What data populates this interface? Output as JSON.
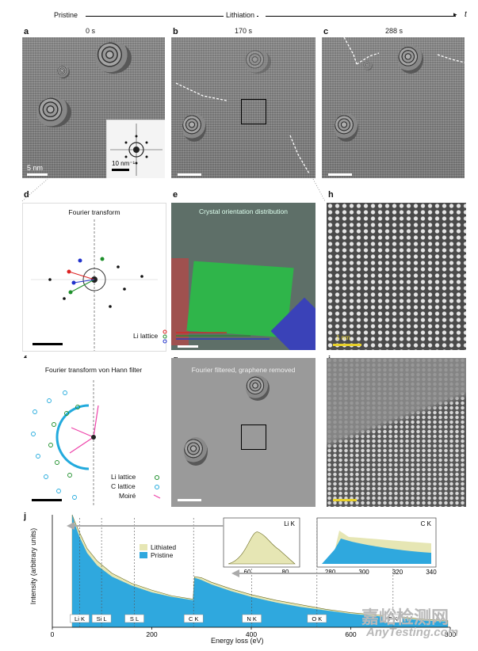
{
  "timeline": {
    "start": "Pristine",
    "mid": "Lithiation",
    "end": "t"
  },
  "panels": {
    "a": {
      "label": "a",
      "time": "0 s",
      "scale": "5 nm",
      "fft_scale": "10 nm⁻¹"
    },
    "b": {
      "label": "b",
      "time": "170 s"
    },
    "c": {
      "label": "c",
      "time": "288 s"
    },
    "d": {
      "label": "d",
      "title": "Fourier transform"
    },
    "e": {
      "label": "e",
      "title": "Crystal orientation distribution",
      "legend": "Li lattice"
    },
    "f": {
      "label": "f",
      "title": "Fourier transform von Hann filter",
      "legend": [
        "Li lattice",
        "C lattice",
        "Moiré"
      ]
    },
    "g": {
      "label": "g",
      "title": "Fourier filtered, graphene removed"
    },
    "h": {
      "label": "h",
      "scale": "1 nm"
    },
    "i": {
      "label": "i"
    },
    "j": {
      "label": "j"
    }
  },
  "colors": {
    "pristine": "#2fa8de",
    "lithiated": "#e6e6b4",
    "li_green": "#1d8f2a",
    "li_red": "#d22",
    "li_blue": "#2233cc",
    "c_lattice": "#22aadd",
    "moire": "#ee44aa",
    "scale_yellow": "#e8d02a"
  },
  "chart_data": {
    "type": "area",
    "xlabel": "Energy loss (eV)",
    "ylabel": "Intensity (arbitrary units)",
    "xlim": [
      0,
      800
    ],
    "xticks": [
      0,
      200,
      400,
      600,
      800
    ],
    "legend": [
      "Lithiated",
      "Pristine"
    ],
    "edges": [
      "Li K",
      "Si L",
      "S L",
      "C K",
      "N K",
      "O K",
      "F K"
    ],
    "edge_energies": [
      55,
      99,
      165,
      284,
      401,
      532,
      685
    ],
    "series": [
      {
        "name": "Pristine",
        "x": [
          40,
          45,
          55,
          70,
          90,
          120,
          160,
          200,
          240,
          283,
          286,
          300,
          320,
          360,
          400,
          450,
          500,
          550,
          600,
          650,
          700,
          750,
          795
        ],
        "y": [
          1.0,
          0.92,
          0.8,
          0.66,
          0.55,
          0.45,
          0.37,
          0.31,
          0.27,
          0.24,
          0.44,
          0.42,
          0.38,
          0.32,
          0.27,
          0.22,
          0.18,
          0.15,
          0.12,
          0.1,
          0.08,
          0.06,
          0.05
        ]
      },
      {
        "name": "Lithiated",
        "x": [
          40,
          45,
          55,
          70,
          90,
          120,
          160,
          200,
          240,
          283,
          286,
          300,
          320,
          360,
          400,
          450,
          500,
          550,
          600,
          650,
          700,
          750,
          795
        ],
        "y": [
          1.0,
          0.94,
          0.84,
          0.7,
          0.59,
          0.48,
          0.39,
          0.33,
          0.28,
          0.25,
          0.45,
          0.44,
          0.4,
          0.34,
          0.29,
          0.24,
          0.2,
          0.16,
          0.13,
          0.11,
          0.09,
          0.07,
          0.06
        ]
      }
    ],
    "insets": [
      {
        "title": "Li K",
        "xlim": [
          50,
          85
        ],
        "xticks": [
          60,
          80
        ]
      },
      {
        "title": "C K",
        "xlim": [
          275,
          340
        ],
        "xticks": [
          280,
          300,
          320,
          340
        ]
      }
    ]
  },
  "watermark": {
    "cn": "嘉峪检测网",
    "en": "AnyTesting.com"
  }
}
